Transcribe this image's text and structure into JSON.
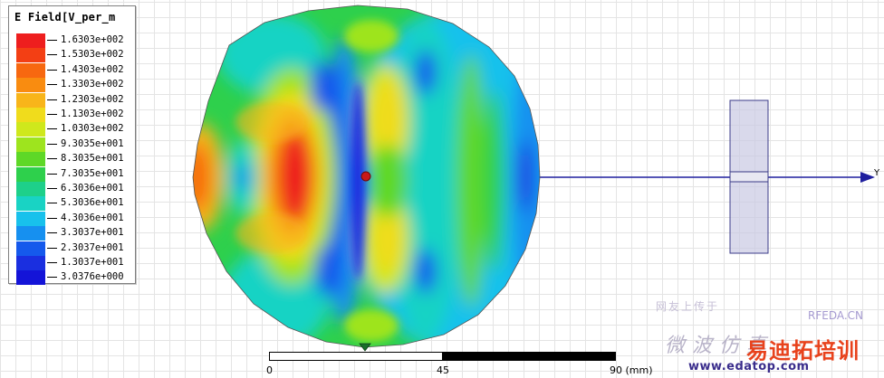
{
  "legend": {
    "title": "E Field[V_per_m",
    "items": [
      {
        "label": "1.6303e+002",
        "color": "#ee1e1e"
      },
      {
        "label": "1.5303e+002",
        "color": "#f33f14"
      },
      {
        "label": "1.4303e+002",
        "color": "#f76810"
      },
      {
        "label": "1.3303e+002",
        "color": "#f98c10"
      },
      {
        "label": "1.2303e+002",
        "color": "#f8b51a"
      },
      {
        "label": "1.1303e+002",
        "color": "#f0dc1c"
      },
      {
        "label": "1.0303e+002",
        "color": "#cfe81c"
      },
      {
        "label": "9.3035e+001",
        "color": "#9ee41e"
      },
      {
        "label": "8.3035e+001",
        "color": "#5ed827"
      },
      {
        "label": "7.3035e+001",
        "color": "#2ed04c"
      },
      {
        "label": "6.3036e+001",
        "color": "#1ed08a"
      },
      {
        "label": "5.3036e+001",
        "color": "#19d3c4"
      },
      {
        "label": "4.3036e+001",
        "color": "#18c1ec"
      },
      {
        "label": "3.3037e+001",
        "color": "#1690f0"
      },
      {
        "label": "2.3037e+001",
        "color": "#1559ec"
      },
      {
        "label": "1.3037e+001",
        "color": "#1a2fe0"
      },
      {
        "label": "3.0376e+000",
        "color": "#1414d8"
      }
    ]
  },
  "axis": {
    "y_label": "Y",
    "axis_color": "#1f1f9e"
  },
  "scale": {
    "labels": [
      "0",
      "45",
      "90 (mm)"
    ]
  },
  "watermark": {
    "top_text": "网友上传于",
    "brand": "RFEDA.CN",
    "mid_text": "微波仿真",
    "big_text": "易迪拓培训",
    "url": "www.edatop.com"
  },
  "colors": {
    "probe": "#c81818",
    "marker": "#1a6e2c",
    "block": "#c9c9e3"
  }
}
